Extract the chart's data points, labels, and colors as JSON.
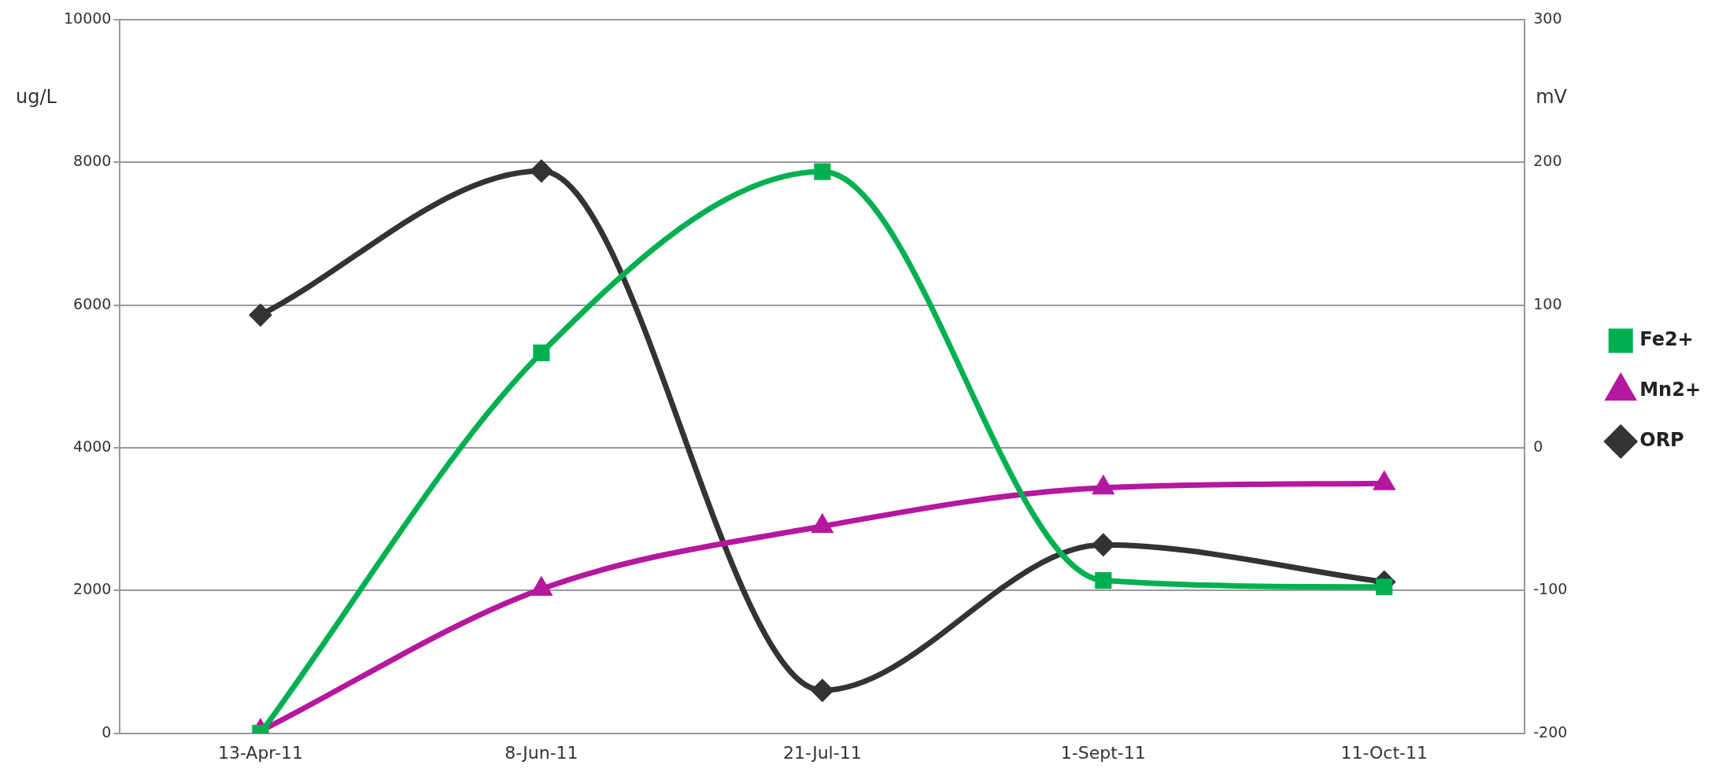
{
  "chart_data": {
    "type": "line",
    "categories": [
      "13-Apr-11",
      "8-Jun-11",
      "21-Jul-11",
      "1-Sept-11",
      "11-Oct-11"
    ],
    "series": [
      {
        "name": "Fe2+",
        "color": "#00b050",
        "marker": "square",
        "values": [
          0,
          5330,
          7870,
          2140,
          2050
        ]
      },
      {
        "name": "Mn2+",
        "color": "#b5179e",
        "marker": "triangle",
        "values": [
          30,
          2020,
          2900,
          3440,
          3500
        ]
      },
      {
        "name": "ORP",
        "color": "#333333",
        "marker": "diamond",
        "axis": "y2",
        "values": [
          93,
          194,
          -170,
          -68,
          -94
        ]
      }
    ],
    "ylabel": "ug/L",
    "y2label": "mV",
    "ylim": [
      0,
      10000
    ],
    "yticks": [
      0,
      2000,
      4000,
      6000,
      8000,
      10000
    ],
    "y2lim": [
      -200,
      300
    ],
    "y2ticks": [
      -200,
      -100,
      0,
      100,
      200,
      300
    ],
    "grid": "y",
    "legend": "right",
    "line_style": "solid"
  }
}
